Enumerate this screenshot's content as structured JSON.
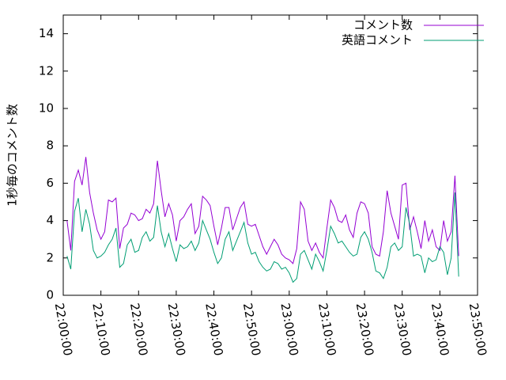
{
  "chart_data": {
    "type": "line",
    "ylabel": "1秒毎のコメント数",
    "x": [
      "22:01:00",
      "22:02:00",
      "22:03:00",
      "22:04:00",
      "22:05:00",
      "22:06:00",
      "22:07:00",
      "22:08:00",
      "22:09:00",
      "22:10:00",
      "22:11:00",
      "22:12:00",
      "22:13:00",
      "22:14:00",
      "22:15:00",
      "22:16:00",
      "22:17:00",
      "22:18:00",
      "22:19:00",
      "22:20:00",
      "22:21:00",
      "22:22:00",
      "22:23:00",
      "22:24:00",
      "22:25:00",
      "22:26:00",
      "22:27:00",
      "22:28:00",
      "22:29:00",
      "22:30:00",
      "22:31:00",
      "22:32:00",
      "22:33:00",
      "22:34:00",
      "22:35:00",
      "22:36:00",
      "22:37:00",
      "22:38:00",
      "22:39:00",
      "22:40:00",
      "22:41:00",
      "22:42:00",
      "22:43:00",
      "22:44:00",
      "22:45:00",
      "22:46:00",
      "22:47:00",
      "22:48:00",
      "22:49:00",
      "22:50:00",
      "22:51:00",
      "22:52:00",
      "22:53:00",
      "22:54:00",
      "22:55:00",
      "22:56:00",
      "22:57:00",
      "22:58:00",
      "22:59:00",
      "23:00:00",
      "23:01:00",
      "23:02:00",
      "23:03:00",
      "23:04:00",
      "23:05:00",
      "23:06:00",
      "23:07:00",
      "23:08:00",
      "23:09:00",
      "23:10:00",
      "23:11:00",
      "23:12:00",
      "23:13:00",
      "23:14:00",
      "23:15:00",
      "23:16:00",
      "23:17:00",
      "23:18:00",
      "23:19:00",
      "23:20:00",
      "23:21:00",
      "23:22:00",
      "23:23:00",
      "23:24:00",
      "23:25:00",
      "23:26:00",
      "23:27:00",
      "23:28:00",
      "23:29:00",
      "23:30:00",
      "23:31:00",
      "23:32:00",
      "23:33:00",
      "23:34:00",
      "23:35:00",
      "23:36:00",
      "23:37:00",
      "23:38:00",
      "23:39:00",
      "23:40:00",
      "23:41:00",
      "23:42:00",
      "23:43:00",
      "23:44:00",
      "23:45:00"
    ],
    "series": [
      {
        "name": "コメント数",
        "color": "#9400d3",
        "values": [
          4.0,
          2.4,
          6.1,
          6.7,
          5.9,
          7.4,
          5.5,
          4.4,
          3.5,
          3.0,
          3.4,
          5.1,
          5.0,
          5.2,
          2.5,
          3.6,
          3.8,
          4.4,
          4.3,
          4.0,
          4.1,
          4.6,
          4.4,
          4.9,
          7.2,
          5.6,
          4.2,
          4.9,
          4.3,
          2.9,
          4.0,
          4.2,
          4.6,
          4.9,
          3.3,
          3.7,
          5.3,
          5.1,
          4.8,
          3.7,
          2.7,
          3.6,
          4.7,
          4.7,
          3.5,
          4.1,
          4.7,
          5.0,
          3.8,
          3.7,
          3.8,
          3.2,
          2.6,
          2.2,
          2.6,
          3.0,
          2.7,
          2.2,
          2.0,
          1.9,
          1.7,
          2.5,
          5.0,
          4.6,
          2.9,
          2.4,
          2.8,
          2.3,
          2.0,
          3.6,
          5.1,
          4.7,
          4.0,
          3.9,
          4.3,
          3.5,
          3.1,
          4.4,
          5.0,
          4.9,
          4.4,
          2.6,
          2.2,
          2.1,
          3.4,
          5.6,
          4.4,
          3.7,
          3.0,
          5.9,
          6.0,
          3.5,
          4.2,
          3.4,
          2.5,
          4.0,
          2.9,
          3.5,
          2.6,
          2.4,
          4.0,
          2.9,
          3.4,
          6.4,
          2.1
        ]
      },
      {
        "name": "英語コメント",
        "color": "#009e73",
        "values": [
          2.1,
          1.4,
          4.5,
          5.2,
          3.4,
          4.6,
          3.8,
          2.4,
          2.0,
          2.1,
          2.3,
          2.7,
          3.0,
          3.6,
          1.5,
          1.7,
          2.7,
          3.0,
          2.3,
          2.4,
          3.1,
          3.4,
          2.9,
          3.1,
          4.8,
          3.4,
          2.6,
          3.3,
          2.5,
          1.8,
          2.7,
          2.5,
          2.6,
          2.9,
          2.4,
          2.8,
          4.0,
          3.5,
          3.0,
          2.3,
          1.7,
          2.0,
          3.0,
          3.4,
          2.4,
          2.9,
          3.4,
          3.9,
          2.8,
          2.2,
          2.3,
          1.8,
          1.5,
          1.3,
          1.4,
          1.8,
          1.7,
          1.4,
          1.5,
          1.2,
          0.7,
          0.9,
          2.2,
          2.4,
          1.9,
          1.4,
          2.2,
          1.8,
          1.3,
          2.4,
          3.7,
          3.3,
          2.8,
          2.9,
          2.6,
          2.3,
          2.1,
          2.2,
          3.1,
          3.4,
          3.0,
          2.3,
          1.3,
          1.2,
          0.9,
          1.5,
          2.6,
          2.8,
          2.4,
          2.6,
          4.7,
          3.8,
          2.1,
          2.2,
          2.1,
          1.2,
          2.0,
          1.8,
          1.9,
          2.6,
          2.3,
          1.1,
          2.0,
          5.5,
          1.0
        ]
      }
    ],
    "xlim": [
      "22:00:00",
      "23:50:00"
    ],
    "xticks": [
      "22:00:00",
      "22:10:00",
      "22:20:00",
      "22:30:00",
      "22:40:00",
      "22:50:00",
      "23:00:00",
      "23:10:00",
      "23:20:00",
      "23:30:00",
      "23:40:00",
      "23:50:00"
    ],
    "ylim": [
      0,
      15
    ],
    "yticks": [
      0,
      2,
      4,
      6,
      8,
      10,
      12,
      14
    ],
    "legend": "top-right"
  }
}
